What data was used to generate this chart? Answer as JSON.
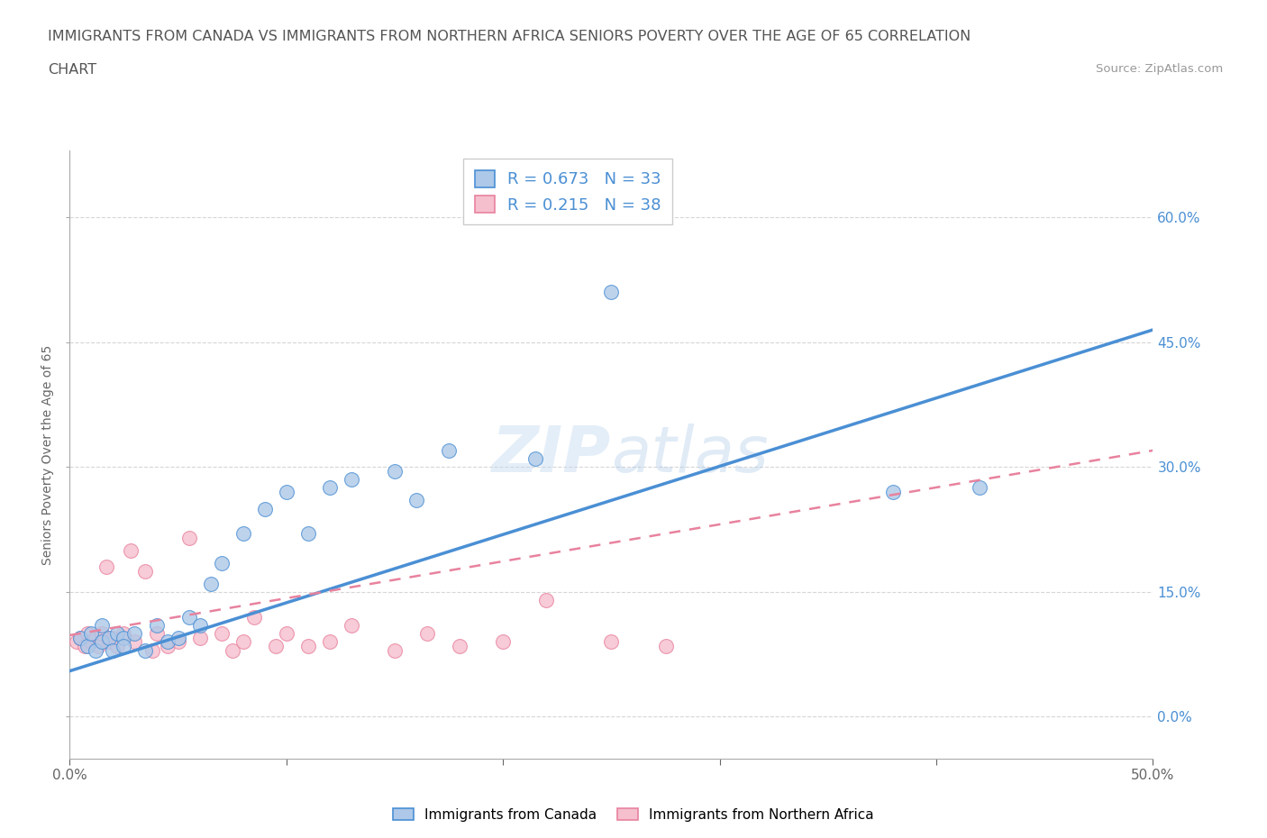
{
  "title_line1": "IMMIGRANTS FROM CANADA VS IMMIGRANTS FROM NORTHERN AFRICA SENIORS POVERTY OVER THE AGE OF 65 CORRELATION",
  "title_line2": "CHART",
  "source_text": "Source: ZipAtlas.com",
  "ylabel": "Seniors Poverty Over the Age of 65",
  "r_canada": 0.673,
  "n_canada": 33,
  "r_n_africa": 0.215,
  "n_n_africa": 38,
  "color_canada": "#adc8e8",
  "color_n_africa": "#f5bfce",
  "color_canada_line": "#4a8fd4",
  "color_n_africa_line": "#e8829e",
  "xlim": [
    0.0,
    0.5
  ],
  "ylim": [
    -0.05,
    0.68
  ],
  "canada_x": [
    0.005,
    0.008,
    0.01,
    0.012,
    0.015,
    0.015,
    0.018,
    0.02,
    0.022,
    0.025,
    0.025,
    0.03,
    0.035,
    0.04,
    0.045,
    0.05,
    0.055,
    0.06,
    0.065,
    0.07,
    0.08,
    0.09,
    0.1,
    0.11,
    0.12,
    0.13,
    0.15,
    0.16,
    0.175,
    0.215,
    0.25,
    0.38,
    0.42
  ],
  "canada_y": [
    0.095,
    0.085,
    0.1,
    0.08,
    0.11,
    0.09,
    0.095,
    0.08,
    0.1,
    0.095,
    0.085,
    0.1,
    0.08,
    0.11,
    0.09,
    0.095,
    0.12,
    0.11,
    0.16,
    0.185,
    0.22,
    0.25,
    0.27,
    0.22,
    0.275,
    0.285,
    0.295,
    0.26,
    0.32,
    0.31,
    0.51,
    0.27,
    0.275
  ],
  "n_africa_x": [
    0.003,
    0.005,
    0.007,
    0.008,
    0.01,
    0.012,
    0.013,
    0.015,
    0.017,
    0.018,
    0.02,
    0.022,
    0.025,
    0.028,
    0.03,
    0.035,
    0.038,
    0.04,
    0.045,
    0.05,
    0.055,
    0.06,
    0.07,
    0.075,
    0.08,
    0.085,
    0.095,
    0.1,
    0.11,
    0.12,
    0.13,
    0.15,
    0.165,
    0.18,
    0.2,
    0.22,
    0.25,
    0.275
  ],
  "n_africa_y": [
    0.09,
    0.095,
    0.085,
    0.1,
    0.09,
    0.095,
    0.085,
    0.1,
    0.18,
    0.09,
    0.095,
    0.085,
    0.1,
    0.2,
    0.09,
    0.175,
    0.08,
    0.1,
    0.085,
    0.09,
    0.215,
    0.095,
    0.1,
    0.08,
    0.09,
    0.12,
    0.085,
    0.1,
    0.085,
    0.09,
    0.11,
    0.08,
    0.1,
    0.085,
    0.09,
    0.14,
    0.09,
    0.085
  ],
  "canada_line_x0": 0.0,
  "canada_line_y0": 0.055,
  "canada_line_x1": 0.5,
  "canada_line_y1": 0.465,
  "nafrica_line_x0": 0.0,
  "nafrica_line_y0": 0.098,
  "nafrica_line_x1": 0.5,
  "nafrica_line_y1": 0.32
}
